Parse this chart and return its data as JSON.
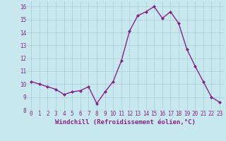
{
  "x": [
    0,
    1,
    2,
    3,
    4,
    5,
    6,
    7,
    8,
    9,
    10,
    11,
    12,
    13,
    14,
    15,
    16,
    17,
    18,
    19,
    20,
    21,
    22,
    23
  ],
  "y": [
    10.2,
    10.0,
    9.8,
    9.6,
    9.2,
    9.4,
    9.5,
    9.8,
    8.5,
    9.4,
    10.2,
    11.8,
    14.1,
    15.3,
    15.6,
    16.0,
    15.1,
    15.6,
    14.7,
    12.7,
    11.4,
    10.2,
    9.0,
    8.6
  ],
  "line_color": "#882288",
  "marker": "D",
  "marker_size": 2.0,
  "bg_color": "#c8e8f0",
  "grid_color": "#a8ccd8",
  "xlabel": "Windchill (Refroidissement éolien,°C)",
  "xlabel_color": "#882288",
  "ylim": [
    8,
    16.4
  ],
  "xlim": [
    -0.5,
    23.5
  ],
  "yticks": [
    8,
    9,
    10,
    11,
    12,
    13,
    14,
    15,
    16
  ],
  "xticks": [
    0,
    1,
    2,
    3,
    4,
    5,
    6,
    7,
    8,
    9,
    10,
    11,
    12,
    13,
    14,
    15,
    16,
    17,
    18,
    19,
    20,
    21,
    22,
    23
  ],
  "tick_fontsize": 5.5,
  "xlabel_fontsize": 6.5,
  "line_width": 1.0
}
